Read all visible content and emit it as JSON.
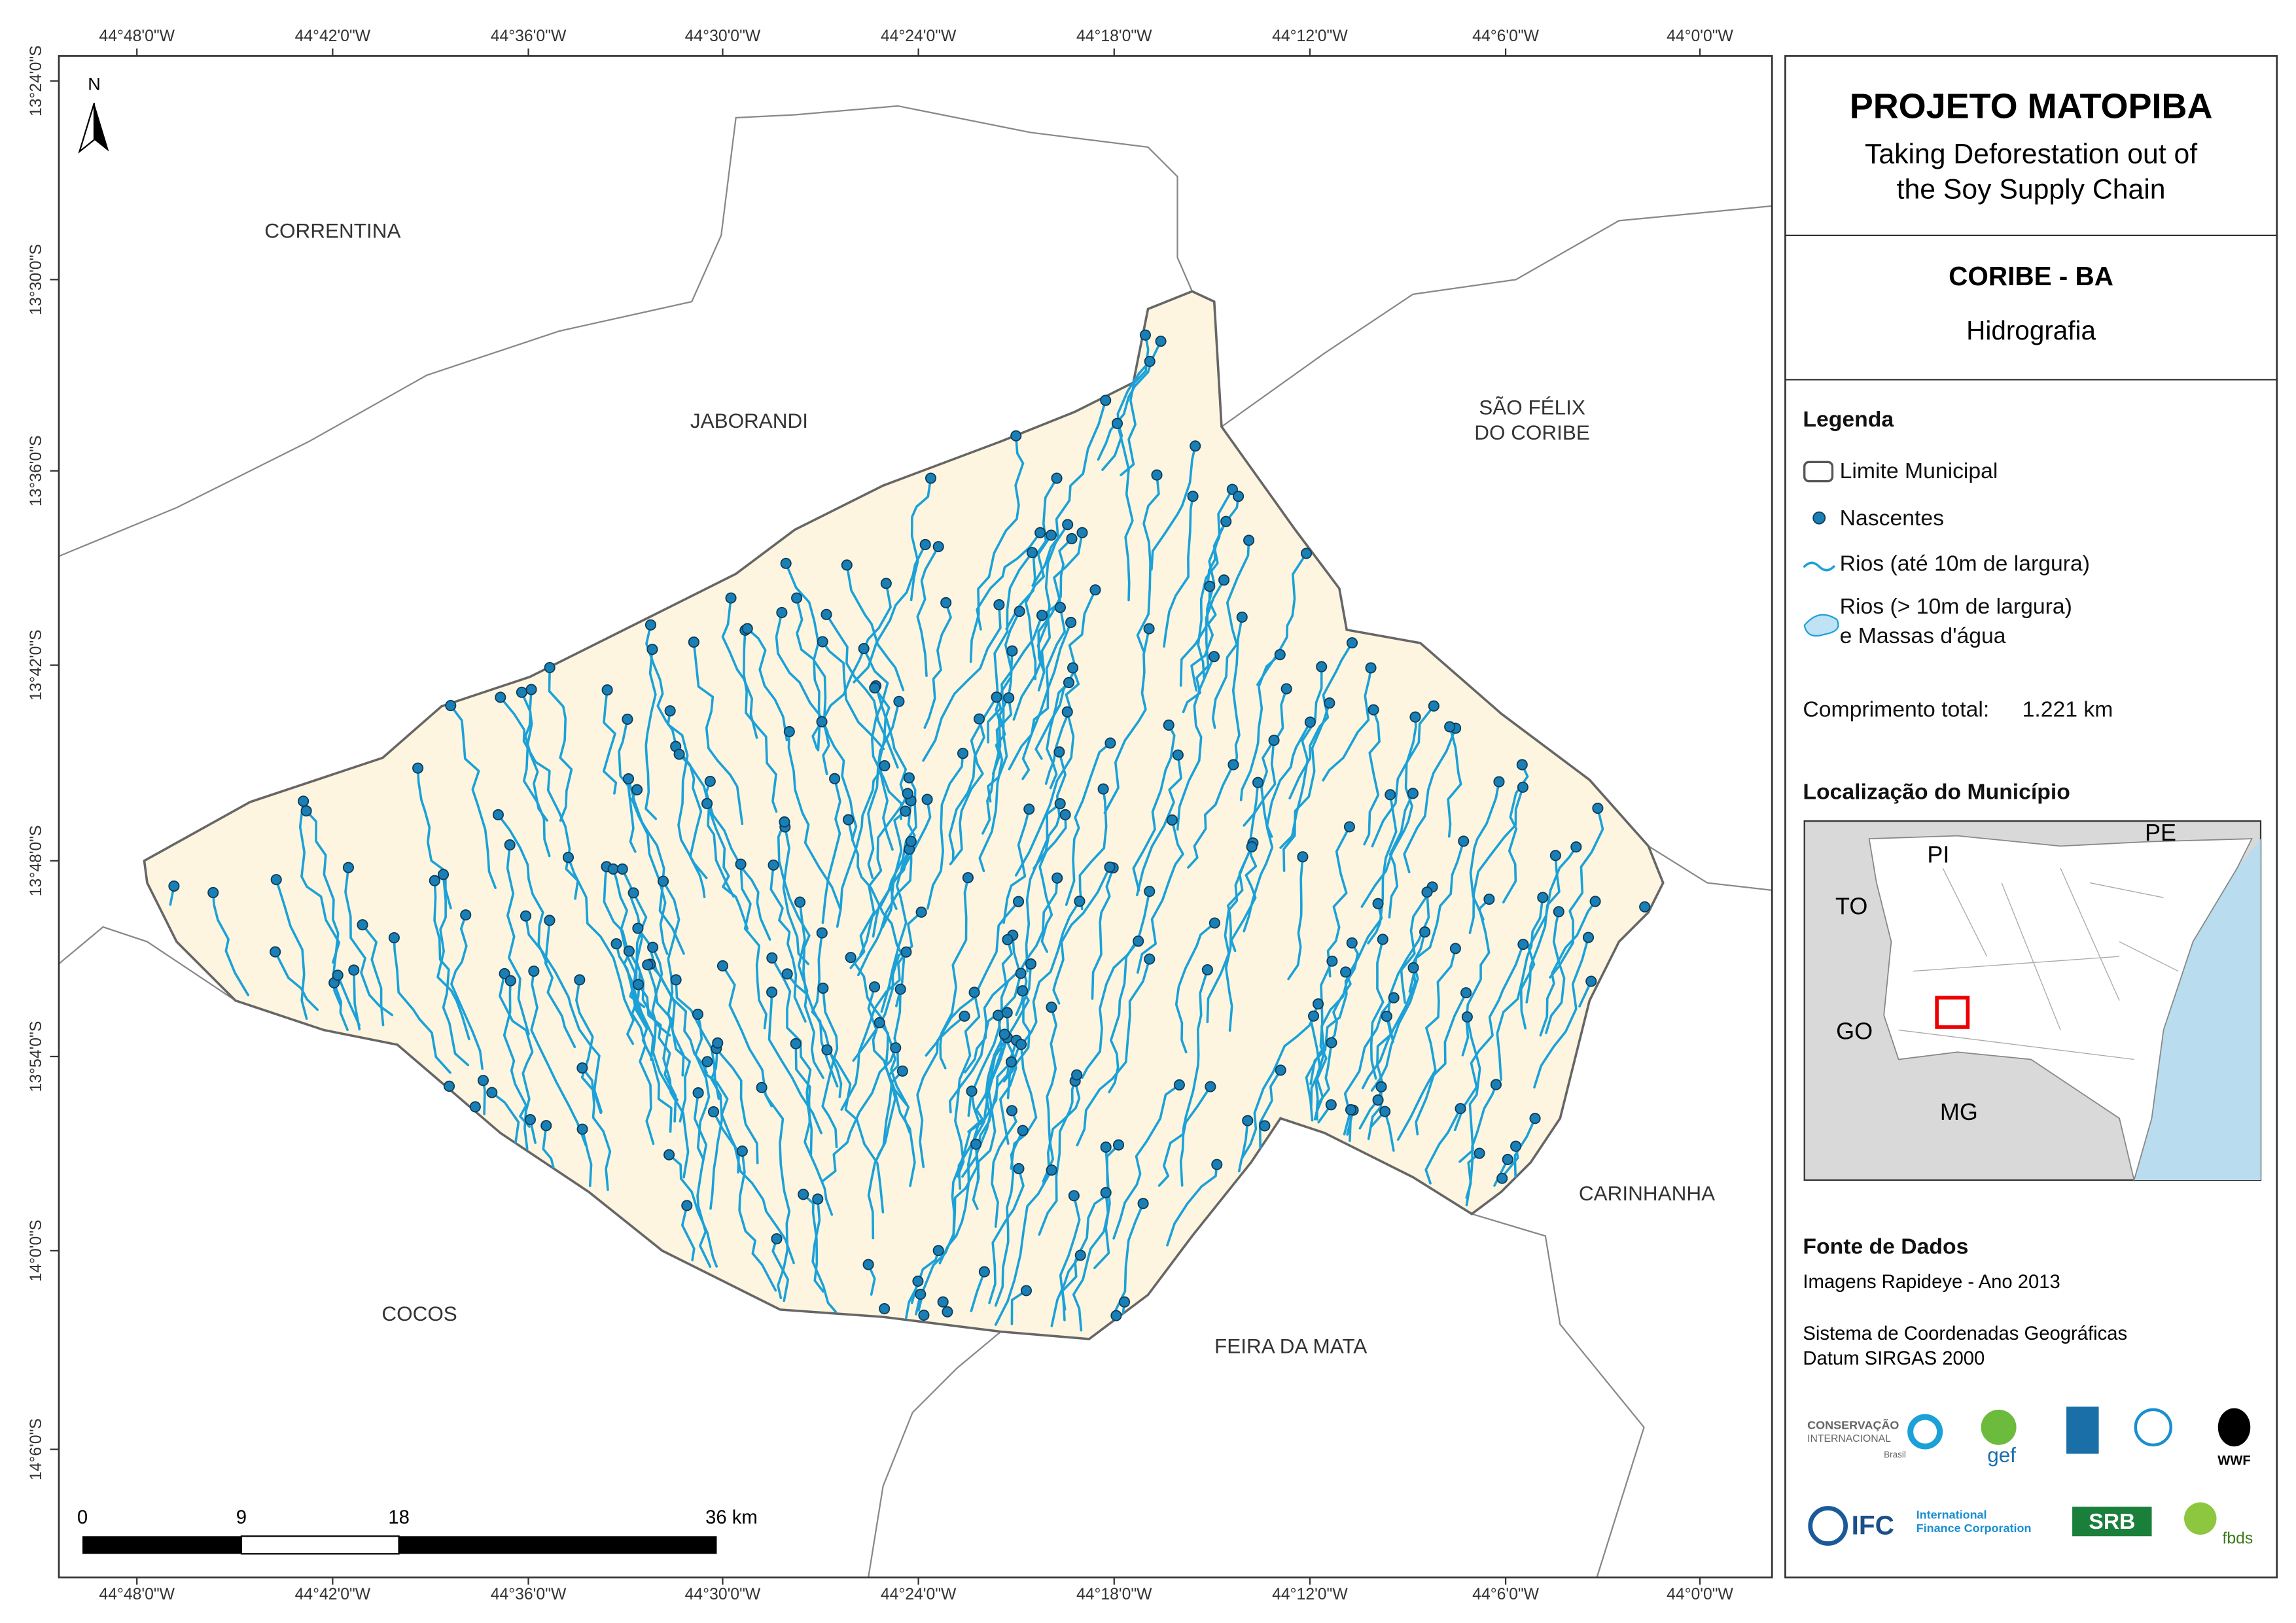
{
  "map": {
    "x_ticks": [
      "44°48'0\"W",
      "44°42'0\"W",
      "44°36'0\"W",
      "44°30'0\"W",
      "44°24'0\"W",
      "44°18'0\"W",
      "44°12'0\"W",
      "44°6'0\"W",
      "44°0'0\"W"
    ],
    "y_ticks": [
      "13°24'0\"S",
      "13°30'0\"S",
      "13°36'0\"S",
      "13°42'0\"S",
      "13°48'0\"S",
      "13°54'0\"S",
      "14°0'0\"S",
      "14°6'0\"S"
    ],
    "north": "N",
    "places": [
      {
        "lines": [
          "CORRENTINA"
        ]
      },
      {
        "lines": [
          "JABORANDI"
        ]
      },
      {
        "lines": [
          "SÃO FÉLIX",
          "DO CORIBE"
        ]
      },
      {
        "lines": [
          "CARINHANHA"
        ]
      },
      {
        "lines": [
          "COCOS"
        ]
      },
      {
        "lines": [
          "FEIRA DA MATA"
        ]
      }
    ],
    "scale_bar": [
      "0",
      "9",
      "18",
      "36 km"
    ]
  },
  "panel": {
    "title": "PROJETO MATOPIBA",
    "subtitle": [
      "Taking Deforestation out of",
      "the Soy Supply Chain"
    ],
    "municipality": "CORIBE - BA",
    "theme": "Hidrografia",
    "legend": {
      "title": "Legenda",
      "items": [
        {
          "label": [
            "Limite Municipal"
          ]
        },
        {
          "label": [
            "Nascentes"
          ]
        },
        {
          "label": [
            "Rios (até 10m de largura)"
          ]
        },
        {
          "label": [
            "Rios (> 10m de largura)",
            "e Massas d'água"
          ]
        }
      ]
    },
    "total_length_label": "Comprimento total:",
    "total_length": "1.221 km",
    "location_title": "Localização do Município",
    "location_labels": [
      "PI",
      "PE",
      "TO",
      "GO",
      "MG"
    ],
    "source_title": "Fonte de Dados",
    "source_lines": [
      "Imagens Rapideye - Ano 2013",
      "Sistema de Coordenadas Geográficas",
      "Datum SIRGAS 2000"
    ],
    "logos": [
      "CONSERVAÇÃO",
      "INTERNACIONAL",
      "Brasil",
      "gef",
      "WWF",
      "IFC",
      "International",
      "Finance Corporation",
      "SRB",
      "fbds"
    ]
  }
}
